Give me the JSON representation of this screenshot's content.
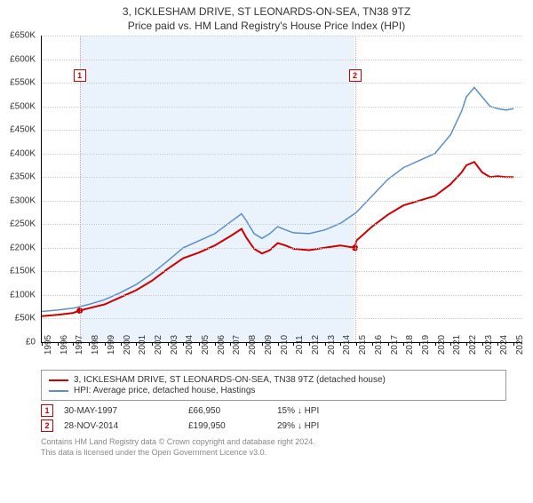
{
  "title_line1": "3, ICKLESHAM DRIVE, ST LEONARDS-ON-SEA, TN38 9TZ",
  "title_line2": "Price paid vs. HM Land Registry's House Price Index (HPI)",
  "chart": {
    "type": "line",
    "background_color": "#ffffff",
    "grid_color": "#cccccc",
    "axis_color": "#000000",
    "x_range": [
      1995,
      2025.5
    ],
    "y_range": [
      0,
      650
    ],
    "y_ticks": [
      0,
      50,
      100,
      150,
      200,
      250,
      300,
      350,
      400,
      450,
      500,
      550,
      600,
      650
    ],
    "y_tick_labels": [
      "£0",
      "£50K",
      "£100K",
      "£150K",
      "£200K",
      "£250K",
      "£300K",
      "£350K",
      "£400K",
      "£450K",
      "£500K",
      "£550K",
      "£600K",
      "£650K"
    ],
    "x_ticks": [
      1995,
      1996,
      1997,
      1998,
      1999,
      2000,
      2001,
      2002,
      2003,
      2004,
      2005,
      2006,
      2007,
      2008,
      2009,
      2010,
      2011,
      2012,
      2013,
      2014,
      2015,
      2016,
      2017,
      2018,
      2019,
      2020,
      2021,
      2022,
      2023,
      2024,
      2025
    ],
    "label_fontsize": 10,
    "region": {
      "x_start": 1997.41,
      "x_end": 2014.91,
      "fill": "#eaf2fb"
    },
    "markers": [
      {
        "n": "1",
        "x": 1997.41,
        "box_y": 565,
        "vline_color": "#d9a0a0"
      },
      {
        "n": "2",
        "x": 2014.91,
        "box_y": 565,
        "vline_color": "#d9a0a0"
      }
    ],
    "series": [
      {
        "name": "price_paid",
        "color": "#cc0000",
        "width": 2,
        "points": [
          [
            1995,
            55
          ],
          [
            1996,
            58
          ],
          [
            1997,
            62
          ],
          [
            1997.41,
            66.95
          ],
          [
            1998,
            72
          ],
          [
            1999,
            80
          ],
          [
            2000,
            95
          ],
          [
            2001,
            110
          ],
          [
            2002,
            130
          ],
          [
            2003,
            155
          ],
          [
            2004,
            178
          ],
          [
            2005,
            190
          ],
          [
            2006,
            205
          ],
          [
            2007,
            225
          ],
          [
            2007.7,
            240
          ],
          [
            2008,
            222
          ],
          [
            2008.5,
            198
          ],
          [
            2009,
            188
          ],
          [
            2009.5,
            195
          ],
          [
            2010,
            210
          ],
          [
            2010.5,
            205
          ],
          [
            2011,
            198
          ],
          [
            2012,
            195
          ],
          [
            2013,
            200
          ],
          [
            2014,
            205
          ],
          [
            2014.91,
            199.95
          ],
          [
            2015,
            215
          ],
          [
            2016,
            245
          ],
          [
            2017,
            270
          ],
          [
            2018,
            290
          ],
          [
            2019,
            300
          ],
          [
            2020,
            310
          ],
          [
            2021,
            335
          ],
          [
            2021.7,
            360
          ],
          [
            2022,
            375
          ],
          [
            2022.5,
            382
          ],
          [
            2023,
            360
          ],
          [
            2023.5,
            350
          ],
          [
            2024,
            352
          ],
          [
            2024.5,
            350
          ],
          [
            2025,
            350
          ]
        ],
        "sale_dots": [
          {
            "x": 1997.41,
            "y": 66.95
          },
          {
            "x": 2014.91,
            "y": 199.95
          }
        ]
      },
      {
        "name": "hpi",
        "color": "#5b8fc7",
        "width": 1.5,
        "points": [
          [
            1995,
            65
          ],
          [
            1996,
            68
          ],
          [
            1997,
            72
          ],
          [
            1998,
            80
          ],
          [
            1999,
            90
          ],
          [
            2000,
            105
          ],
          [
            2001,
            122
          ],
          [
            2002,
            145
          ],
          [
            2003,
            172
          ],
          [
            2004,
            200
          ],
          [
            2005,
            215
          ],
          [
            2006,
            230
          ],
          [
            2007,
            255
          ],
          [
            2007.7,
            272
          ],
          [
            2008,
            258
          ],
          [
            2008.5,
            230
          ],
          [
            2009,
            220
          ],
          [
            2009.5,
            230
          ],
          [
            2010,
            245
          ],
          [
            2010.5,
            238
          ],
          [
            2011,
            232
          ],
          [
            2012,
            230
          ],
          [
            2013,
            238
          ],
          [
            2014,
            252
          ],
          [
            2015,
            275
          ],
          [
            2016,
            310
          ],
          [
            2017,
            345
          ],
          [
            2018,
            370
          ],
          [
            2019,
            385
          ],
          [
            2020,
            400
          ],
          [
            2021,
            440
          ],
          [
            2021.7,
            490
          ],
          [
            2022,
            520
          ],
          [
            2022.5,
            540
          ],
          [
            2023,
            520
          ],
          [
            2023.5,
            500
          ],
          [
            2024,
            495
          ],
          [
            2024.5,
            492
          ],
          [
            2025,
            495
          ]
        ]
      }
    ]
  },
  "legend": {
    "items": [
      {
        "color": "#cc0000",
        "label": "3, ICKLESHAM DRIVE, ST LEONARDS-ON-SEA, TN38 9TZ (detached house)"
      },
      {
        "color": "#5b8fc7",
        "label": "HPI: Average price, detached house, Hastings"
      }
    ]
  },
  "sales": [
    {
      "n": "1",
      "date": "30-MAY-1997",
      "price": "£66,950",
      "diff": "15% ↓ HPI"
    },
    {
      "n": "2",
      "date": "28-NOV-2014",
      "price": "£199,950",
      "diff": "29% ↓ HPI"
    }
  ],
  "footer_line1": "Contains HM Land Registry data © Crown copyright and database right 2024.",
  "footer_line2": "This data is licensed under the Open Government Licence v3.0."
}
